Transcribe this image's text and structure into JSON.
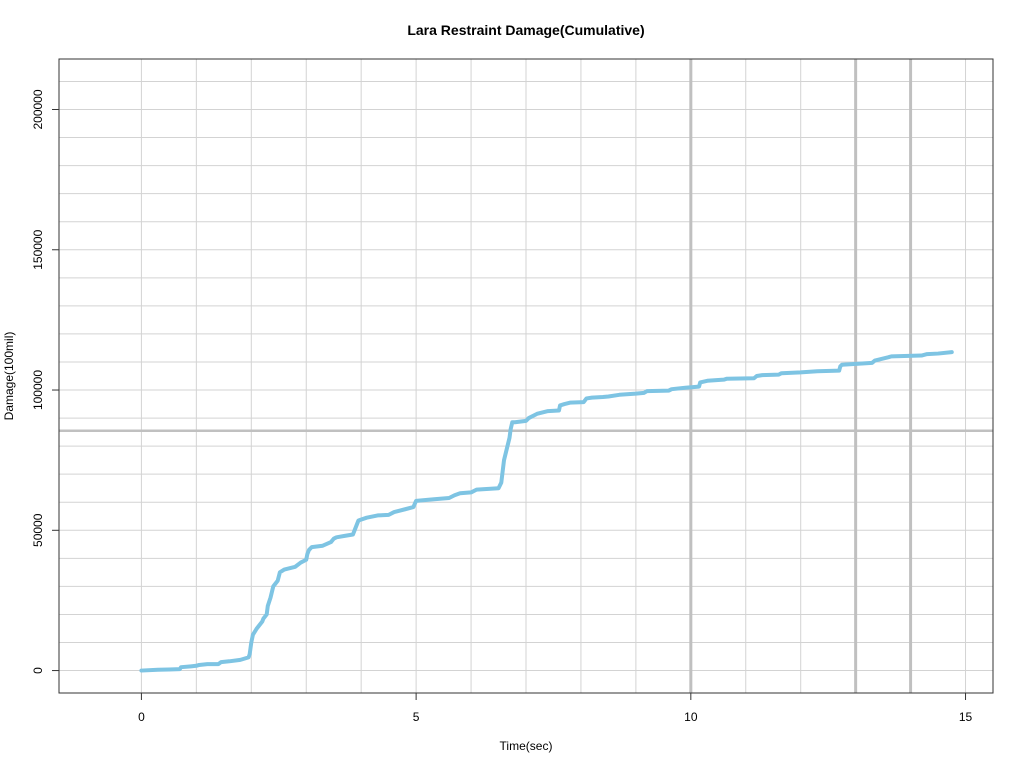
{
  "chart_data": {
    "type": "line",
    "title": "Lara Restraint Damage(Cumulative)",
    "xlabel": "Time(sec)",
    "ylabel": "Damage(100mil)",
    "xlim": [
      -1.5,
      15.5
    ],
    "ylim": [
      -8000,
      218000
    ],
    "x_ticks": [
      0,
      5,
      10,
      15
    ],
    "y_ticks": [
      0,
      50000,
      100000,
      150000,
      200000
    ],
    "grid": true,
    "x_minor_grid": [
      0,
      1,
      2,
      3,
      4,
      5,
      6,
      7,
      8,
      9,
      10,
      11,
      12,
      13,
      14,
      15
    ],
    "y_minor_grid": [
      0,
      10000,
      20000,
      30000,
      40000,
      50000,
      60000,
      70000,
      80000,
      90000,
      100000,
      110000,
      120000,
      130000,
      140000,
      150000,
      160000,
      170000,
      180000,
      190000,
      200000,
      210000
    ],
    "reference_lines": {
      "horizontal_y": [
        85500
      ],
      "vertical_x": [
        10,
        13,
        14
      ]
    },
    "colors": {
      "series": "#7ec4e3",
      "grid": "#d3d3d3",
      "reference": "#c0c0c0",
      "frame": "#333333"
    },
    "series": [
      {
        "x": [
          0,
          0.3,
          0.5,
          0.7,
          0.72,
          0.9,
          1.0,
          1.05,
          1.2,
          1.4,
          1.45,
          1.6,
          1.8,
          1.95,
          1.97,
          2.0,
          2.03,
          2.1,
          2.2,
          2.22,
          2.28,
          2.3,
          2.35,
          2.4,
          2.48,
          2.5,
          2.52,
          2.6,
          2.8,
          2.9,
          3.0,
          3.02,
          3.05,
          3.1,
          3.3,
          3.45,
          3.5,
          3.55,
          3.7,
          3.85,
          3.9,
          3.95,
          4.1,
          4.3,
          4.5,
          4.6,
          4.8,
          4.95,
          5.0,
          5.3,
          5.6,
          5.7,
          5.8,
          6.0,
          6.1,
          6.5,
          6.55,
          6.6,
          6.7,
          6.72,
          6.75,
          6.8,
          7.0,
          7.05,
          7.2,
          7.4,
          7.6,
          7.62,
          7.7,
          7.8,
          8.05,
          8.1,
          8.2,
          8.4,
          8.5,
          8.7,
          9.0,
          9.15,
          9.2,
          9.6,
          9.65,
          9.9,
          10.15,
          10.17,
          10.3,
          10.6,
          10.65,
          11.15,
          11.2,
          11.3,
          11.6,
          11.65,
          12.0,
          12.3,
          12.7,
          12.72,
          12.75,
          13.3,
          13.35,
          13.6,
          13.65,
          14.2,
          14.3,
          14.5,
          14.75
        ],
        "y": [
          0,
          300,
          400,
          500,
          1200,
          1500,
          1700,
          2000,
          2300,
          2300,
          3000,
          3300,
          3800,
          4700,
          5800,
          10000,
          12800,
          15000,
          17500,
          18500,
          20000,
          23000,
          26000,
          30000,
          32000,
          33500,
          35000,
          36000,
          37000,
          38500,
          39500,
          41500,
          43000,
          44000,
          44500,
          45800,
          47000,
          47500,
          48000,
          48500,
          51000,
          53500,
          54500,
          55300,
          55500,
          56500,
          57500,
          58300,
          60500,
          61000,
          61500,
          62500,
          63200,
          63500,
          64500,
          65000,
          67000,
          75000,
          83000,
          86000,
          88500,
          88500,
          89000,
          90000,
          91500,
          92500,
          92700,
          94500,
          95000,
          95500,
          95700,
          97000,
          97300,
          97500,
          97700,
          98300,
          98700,
          99000,
          99600,
          99800,
          100300,
          100800,
          101200,
          102700,
          103300,
          103700,
          104000,
          104200,
          105000,
          105300,
          105500,
          106000,
          106300,
          106700,
          106900,
          108400,
          109000,
          109700,
          110500,
          111700,
          112000,
          112300,
          112800,
          113000,
          113500
        ]
      }
    ]
  }
}
